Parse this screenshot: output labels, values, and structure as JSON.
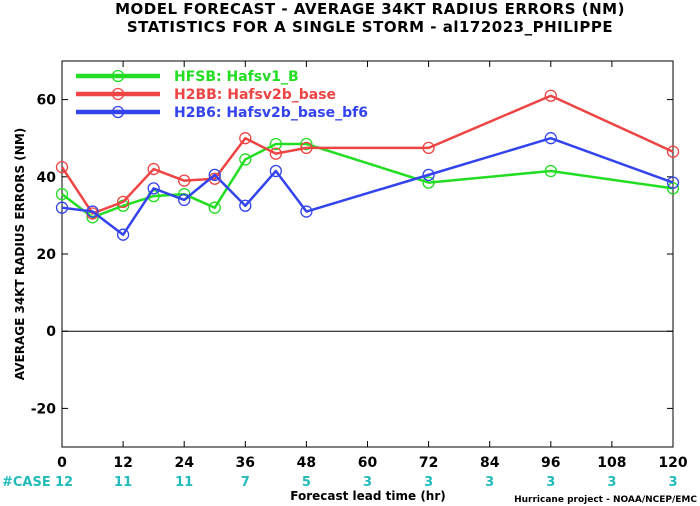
{
  "chart_data": {
    "type": "line",
    "title": [
      "MODEL FORECAST - AVERAGE 34KT RADIUS ERRORS (NM)",
      "STATISTICS FOR A SINGLE STORM - al172023_PHILIPPE"
    ],
    "xlabel": "Forecast lead time (hr)",
    "ylabel": "AVERAGE 34KT RADIUS ERRORS (NM)",
    "xlim": [
      0,
      120
    ],
    "ylim": [
      -30,
      70
    ],
    "xticks": [
      0,
      12,
      24,
      36,
      48,
      60,
      72,
      84,
      96,
      108,
      120
    ],
    "yticks": [
      -20,
      0,
      20,
      40,
      60
    ],
    "zero_line": true,
    "grid": false,
    "legend_position": "top-left",
    "case_label": "#CASE",
    "case_counts": [
      {
        "x": 0,
        "n": "12"
      },
      {
        "x": 12,
        "n": "11"
      },
      {
        "x": 24,
        "n": "11"
      },
      {
        "x": 36,
        "n": "7"
      },
      {
        "x": 48,
        "n": "5"
      },
      {
        "x": 60,
        "n": "3"
      },
      {
        "x": 72,
        "n": "3"
      },
      {
        "x": 84,
        "n": "3"
      },
      {
        "x": 96,
        "n": "3"
      },
      {
        "x": 108,
        "n": "3"
      },
      {
        "x": 120,
        "n": "3"
      }
    ],
    "series": [
      {
        "name": "HFSB: Hafsv1_B",
        "color": "#22dd22",
        "x": [
          0,
          6,
          12,
          18,
          24,
          30,
          36,
          42,
          48,
          72,
          96,
          120
        ],
        "y": [
          35.5,
          29.5,
          32.5,
          35,
          35.5,
          32,
          44.5,
          48.5,
          48.5,
          38.5,
          41.5,
          37
        ]
      },
      {
        "name": "H2BB: Hafsv2b_base",
        "color": "#ee4444",
        "x": [
          0,
          6,
          12,
          18,
          24,
          30,
          36,
          42,
          48,
          72,
          96,
          120
        ],
        "y": [
          42.5,
          30.5,
          33.5,
          42,
          39,
          39.5,
          50,
          46,
          47.5,
          47.5,
          61,
          46.5
        ]
      },
      {
        "name": "H2B6: Hafsv2b_base_bf6",
        "color": "#3344ee",
        "x": [
          0,
          6,
          12,
          18,
          24,
          30,
          36,
          42,
          48,
          72,
          96,
          120
        ],
        "y": [
          32,
          31,
          25,
          37,
          34,
          40.5,
          32.5,
          41.5,
          31,
          40.5,
          50,
          38.5
        ]
      }
    ],
    "axis_color": "#000000",
    "case_color": "#22bbbb"
  },
  "credit": "Hurricane project - NOAA/NCEP/EMC"
}
